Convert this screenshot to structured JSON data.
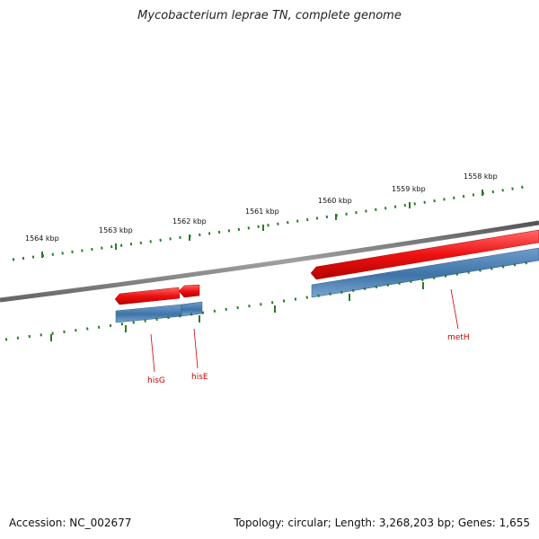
{
  "title": "Mycobacterium leprae TN, complete genome",
  "footer": {
    "accession": "Accession: NC_002677",
    "summary": "Topology: circular; Length: 3,268,203 bp; Genes: 1,655"
  },
  "ruler": {
    "labels": [
      "1564 kbp",
      "1563 kbp",
      "1562 kbp",
      "1561 kbp",
      "1560 kbp",
      "1559 kbp",
      "1558 kbp"
    ]
  },
  "genes": [
    {
      "name": "hisG"
    },
    {
      "name": "hisE"
    },
    {
      "name": "metH"
    }
  ],
  "colors": {
    "forward_gene": "#ee1111",
    "cds_track": "#3f74a8",
    "backbone": "#7a7a7a",
    "ruler": "#2a7a2a",
    "label": "#cc0000"
  }
}
